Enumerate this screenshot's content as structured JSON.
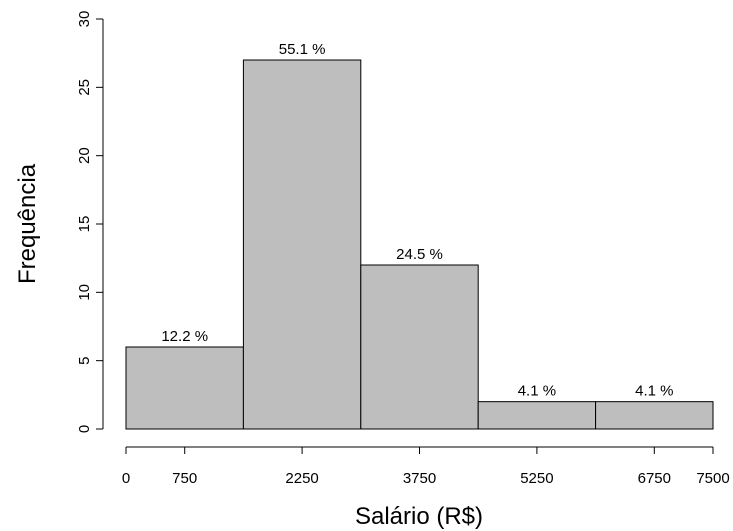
{
  "chart_data": {
    "type": "bar",
    "subtype": "histogram",
    "xlabel": "Salário (R$)",
    "ylabel": "Frequência",
    "bins": [
      {
        "x0": 0,
        "x1": 1500,
        "count": 6,
        "label": "12.2 %"
      },
      {
        "x0": 1500,
        "x1": 3000,
        "count": 27,
        "label": "55.1 %"
      },
      {
        "x0": 3000,
        "x1": 4500,
        "count": 12,
        "label": "24.5 %"
      },
      {
        "x0": 4500,
        "x1": 6000,
        "count": 2,
        "label": "4.1 %"
      },
      {
        "x0": 6000,
        "x1": 7500,
        "count": 2,
        "label": "4.1 %"
      }
    ],
    "xticks": [
      0,
      750,
      2250,
      3750,
      5250,
      6750,
      7500
    ],
    "xtick_labels": [
      "0",
      "750",
      "2250",
      "3750",
      "5250",
      "6750",
      "7500"
    ],
    "yticks": [
      0,
      5,
      10,
      15,
      20,
      25,
      30
    ],
    "ytick_labels": [
      "0",
      "5",
      "10",
      "15",
      "20",
      "25",
      "30"
    ],
    "xlim": [
      0,
      7500
    ],
    "ylim": [
      0,
      30
    ],
    "grid": false,
    "colors": {
      "bar_fill": "#bebebe",
      "bar_stroke": "#000000"
    }
  }
}
